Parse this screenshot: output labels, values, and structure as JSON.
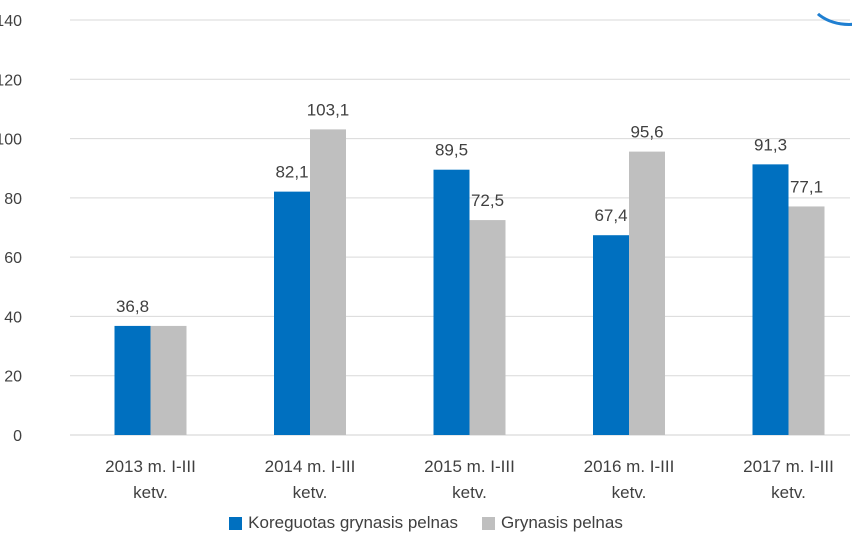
{
  "chart_data": {
    "type": "bar",
    "categories": [
      [
        "2013 m. I-III",
        "ketv."
      ],
      [
        "2014 m.  I-III",
        "ketv."
      ],
      [
        "2015 m.  I-III",
        "ketv."
      ],
      [
        "2016 m.  I-III",
        "ketv."
      ],
      [
        "2017 m.  I-III",
        "ketv."
      ]
    ],
    "series": [
      {
        "name": "Koreguotas grynasis pelnas",
        "color": "#0070c0",
        "values": [
          36.8,
          82.1,
          89.5,
          67.4,
          91.3
        ]
      },
      {
        "name": "Grynasis pelnas",
        "color": "#bfbfbf",
        "values": [
          36.8,
          103.1,
          72.5,
          95.6,
          77.1
        ]
      }
    ],
    "data_labels": [
      [
        "36,8",
        "82,1",
        "89,5",
        "67,4",
        "91,3"
      ],
      [
        "",
        "103,1",
        "72,5",
        "95,6",
        "77,1"
      ]
    ],
    "ylim": [
      0,
      140
    ],
    "yticks": [
      0,
      20,
      40,
      60,
      80,
      100,
      120,
      140
    ],
    "grid": true,
    "legend_position": "bottom"
  },
  "legend": {
    "items": [
      {
        "label": "Koreguotas grynasis pelnas",
        "color": "#0070c0"
      },
      {
        "label": "Grynasis pelnas",
        "color": "#bfbfbf"
      }
    ]
  }
}
